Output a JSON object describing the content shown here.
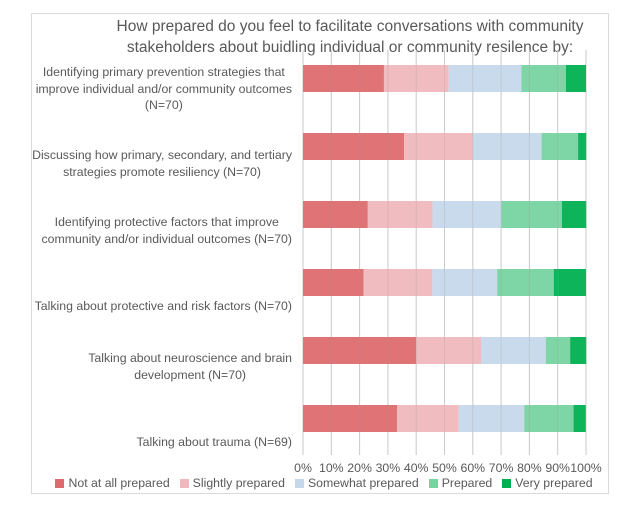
{
  "chart_data": {
    "type": "bar",
    "orientation": "horizontal",
    "stacked": "100%",
    "title": "How prepared do you feel to facilitate conversations with community stakeholders about buidling individual or community resilence by:",
    "title_lines": [
      "How prepared do you feel to facilitate conversations with community",
      "stakeholders about buidling individual or community resilence by:"
    ],
    "xlabel": "",
    "ylabel": "",
    "xlim": [
      0,
      100
    ],
    "x_ticks": [
      "0%",
      "10%",
      "20%",
      "30%",
      "40%",
      "50%",
      "60%",
      "70%",
      "80%",
      "90%",
      "100%"
    ],
    "grid": "vertical",
    "legend_position": "bottom",
    "categories": [
      "Identifying primary prevention strategies that improve individual and/or community outcomes (N=70)",
      "Discussing how primary, secondary, and tertiary strategies promote resiliency (N=70)",
      "Identifying protective factors that improve community and/or individual outcomes (N=70)",
      "Talking about protective and risk factors (N=70)",
      "Talking about neuroscience and brain development (N=70)",
      "Talking about trauma (N=69)"
    ],
    "category_label_lines": [
      [
        "Identifying primary prevention strategies that",
        "improve individual and/or community outcomes",
        "(N=70)"
      ],
      [
        "Discussing how primary, secondary, and tertiary",
        "strategies promote resiliency (N=70)"
      ],
      [
        "Identifying protective factors that improve",
        "community and/or individual outcomes (N=70)"
      ],
      [
        "Talking about protective and risk factors (N=70)"
      ],
      [
        "Talking about neuroscience and brain",
        "development (N=70)"
      ],
      [
        "Talking about trauma (N=69)"
      ]
    ],
    "series": [
      {
        "name": "Not at all prepared",
        "color": "#dd6b6e",
        "values": [
          28.6,
          35.7,
          22.9,
          21.4,
          40.0,
          33.3
        ]
      },
      {
        "name": "Slightly prepared",
        "color": "#f0b8bc",
        "values": [
          22.9,
          24.3,
          22.9,
          24.3,
          22.9,
          21.7
        ]
      },
      {
        "name": "Somewhat prepared",
        "color": "#c5d8ea",
        "values": [
          25.7,
          24.3,
          24.3,
          22.9,
          22.9,
          23.2
        ]
      },
      {
        "name": "Prepared",
        "color": "#77d3a0",
        "values": [
          15.7,
          12.9,
          21.4,
          20.0,
          8.6,
          17.4
        ]
      },
      {
        "name": "Very prepared",
        "color": "#00b050",
        "values": [
          7.1,
          2.9,
          8.6,
          11.4,
          5.7,
          4.3
        ]
      }
    ]
  }
}
